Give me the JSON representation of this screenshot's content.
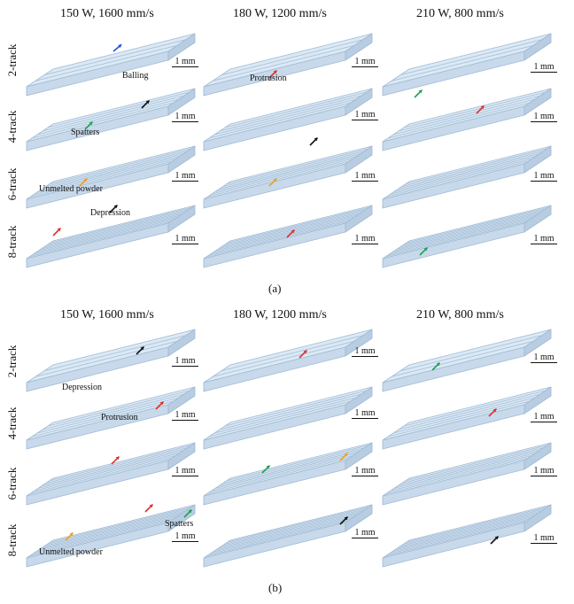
{
  "columns": [
    "150 W, 1600 mm/s",
    "180 W, 1200 mm/s",
    "210 W, 800 mm/s"
  ],
  "rows": [
    "2-track",
    "4-track",
    "6-track",
    "8-track"
  ],
  "scale_label": "1 mm",
  "panels": {
    "a": {
      "caption": "(a)",
      "annotations": {
        "balling": "Balling",
        "protrusion": "Protrusion",
        "spatters": "Spatters",
        "unmelted": "Unmelted powder",
        "depression": "Depression"
      }
    },
    "b": {
      "caption": "(b)",
      "annotations": {
        "depression": "Depression",
        "protrusion": "Protrusion",
        "spatters": "Spatters",
        "unmelted": "Unmelted powder"
      }
    }
  },
  "colors": {
    "slab_fill": "#dbe9f5",
    "slab_edge": "#9fb9d3",
    "arrow_blue": "#2050d8",
    "arrow_red": "#e0302a",
    "arrow_green": "#20a050",
    "arrow_orange": "#f0a020",
    "arrow_black": "#111111"
  }
}
